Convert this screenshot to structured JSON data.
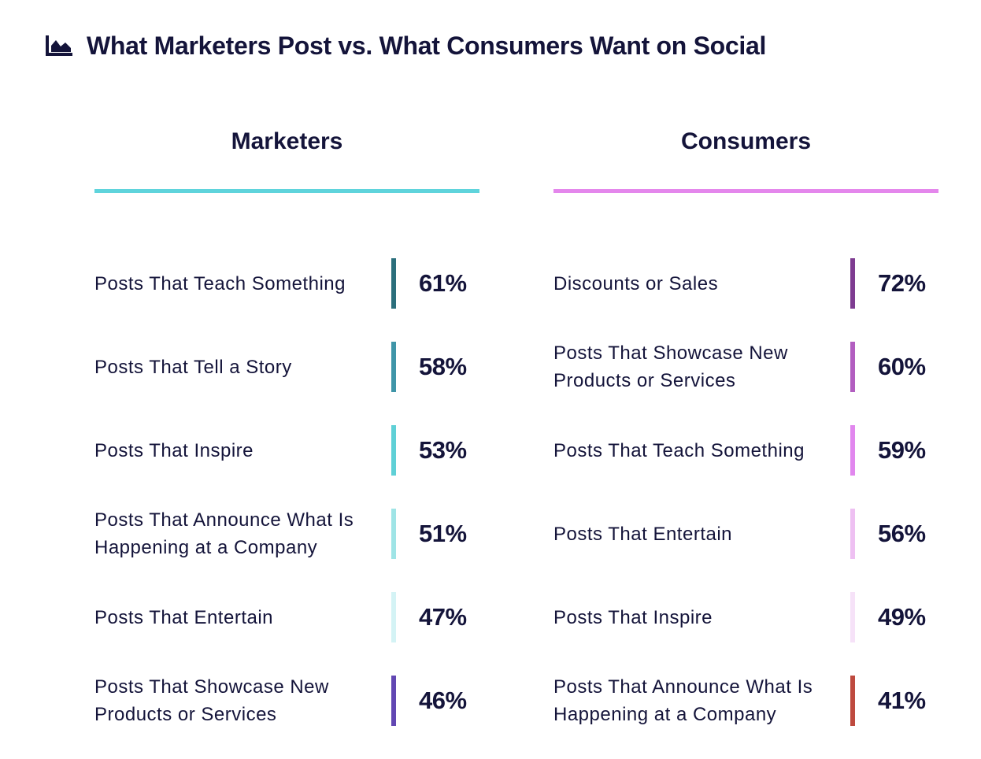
{
  "title": "What Marketers Post vs. What Consumers Want on Social",
  "colors": {
    "text": "#14143a",
    "marketers_rule": "#5fd4dc",
    "consumers_rule": "#e487ec"
  },
  "chart_data": [
    {
      "type": "table",
      "name": "Marketers",
      "rule_color": "#5fd4dc",
      "categories": [
        "Posts That Teach Something",
        "Posts That Tell a Story",
        "Posts That Inspire",
        "Posts That Announce What Is Happening at a Company",
        "Posts That Entertain",
        "Posts That Showcase New Products or Services"
      ],
      "values": [
        61,
        58,
        53,
        51,
        47,
        46
      ],
      "labels": [
        "61%",
        "58%",
        "53%",
        "51%",
        "47%",
        "46%"
      ],
      "bar_colors": [
        "#2b6f7c",
        "#3f95a8",
        "#5fd0d6",
        "#9fe4e6",
        "#d4f3f5",
        "#6247b3"
      ]
    },
    {
      "type": "table",
      "name": "Consumers",
      "rule_color": "#e487ec",
      "categories": [
        "Discounts or Sales",
        "Posts That Showcase New Products or Services",
        "Posts That Teach Something",
        "Posts That Entertain",
        "Posts That Inspire",
        "Posts That Announce What Is Happening at a Company"
      ],
      "values": [
        72,
        60,
        59,
        56,
        49,
        41
      ],
      "labels": [
        "72%",
        "60%",
        "59%",
        "56%",
        "49%",
        "41%"
      ],
      "bar_colors": [
        "#7e3c91",
        "#b25ec0",
        "#e187ee",
        "#eec0f2",
        "#f6e2f8",
        "#be4a3f"
      ]
    }
  ]
}
